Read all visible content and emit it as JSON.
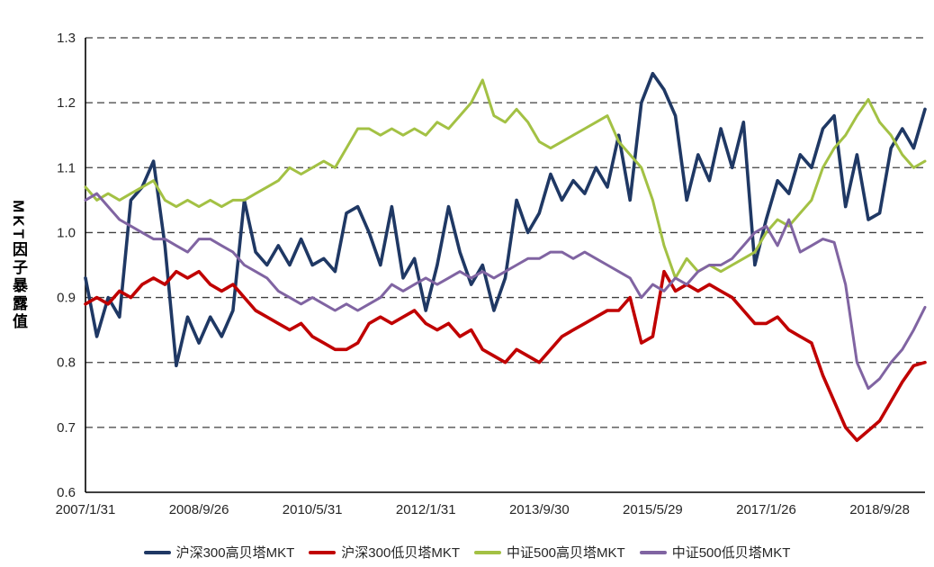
{
  "chart_data": {
    "type": "line",
    "title": "",
    "xlabel": "",
    "ylabel": "MKT因子暴露值",
    "ylim": [
      0.6,
      1.3
    ],
    "yticks": [
      0.6,
      0.7,
      0.8,
      0.9,
      1.0,
      1.1,
      1.2,
      1.3
    ],
    "grid": "dashed-horizontal",
    "legend_position": "bottom",
    "background": "#FFFFFF",
    "axis_color": "#000000",
    "gridline_color": "#3f3f3f",
    "x_domain_months": [
      0,
      148
    ],
    "x_months_step": 2,
    "xticks": [
      {
        "month": 0,
        "label": "2007/1/31"
      },
      {
        "month": 20,
        "label": "2008/9/26"
      },
      {
        "month": 40,
        "label": "2010/5/31"
      },
      {
        "month": 60,
        "label": "2012/1/31"
      },
      {
        "month": 80,
        "label": "2013/9/30"
      },
      {
        "month": 100,
        "label": "2015/5/29"
      },
      {
        "month": 120,
        "label": "2017/1/26"
      },
      {
        "month": 140,
        "label": "2018/9/28"
      }
    ],
    "series": [
      {
        "name": "沪深300高贝塔MKT",
        "color": "#1F3864",
        "width": 3.6,
        "values": [
          0.93,
          0.84,
          0.9,
          0.87,
          1.05,
          1.07,
          1.11,
          0.98,
          0.795,
          0.87,
          0.83,
          0.87,
          0.84,
          0.88,
          1.05,
          0.97,
          0.95,
          0.98,
          0.95,
          0.99,
          0.95,
          0.96,
          0.94,
          1.03,
          1.04,
          1.0,
          0.95,
          1.04,
          0.93,
          0.96,
          0.88,
          0.95,
          1.04,
          0.97,
          0.92,
          0.95,
          0.88,
          0.93,
          1.05,
          1.0,
          1.03,
          1.09,
          1.05,
          1.08,
          1.06,
          1.1,
          1.07,
          1.15,
          1.05,
          1.2,
          1.245,
          1.22,
          1.18,
          1.05,
          1.12,
          1.08,
          1.16,
          1.1,
          1.17,
          0.95,
          1.02,
          1.08,
          1.06,
          1.12,
          1.1,
          1.16,
          1.18,
          1.04,
          1.12,
          1.02,
          1.03,
          1.13,
          1.16,
          1.13,
          1.19
        ]
      },
      {
        "name": "沪深300低贝塔MKT",
        "color": "#C00000",
        "width": 3.6,
        "values": [
          0.89,
          0.9,
          0.89,
          0.91,
          0.9,
          0.92,
          0.93,
          0.92,
          0.94,
          0.93,
          0.94,
          0.92,
          0.91,
          0.92,
          0.9,
          0.88,
          0.87,
          0.86,
          0.85,
          0.86,
          0.84,
          0.83,
          0.82,
          0.82,
          0.83,
          0.86,
          0.87,
          0.86,
          0.87,
          0.88,
          0.86,
          0.85,
          0.86,
          0.84,
          0.85,
          0.82,
          0.81,
          0.8,
          0.82,
          0.81,
          0.8,
          0.82,
          0.84,
          0.85,
          0.86,
          0.87,
          0.88,
          0.88,
          0.9,
          0.83,
          0.84,
          0.94,
          0.91,
          0.92,
          0.91,
          0.92,
          0.91,
          0.9,
          0.88,
          0.86,
          0.86,
          0.87,
          0.85,
          0.84,
          0.83,
          0.78,
          0.74,
          0.7,
          0.68,
          0.695,
          0.71,
          0.74,
          0.77,
          0.795,
          0.8
        ]
      },
      {
        "name": "中证500高贝塔MKT",
        "color": "#A3C144",
        "width": 3.0,
        "values": [
          1.07,
          1.05,
          1.06,
          1.05,
          1.06,
          1.07,
          1.08,
          1.05,
          1.04,
          1.05,
          1.04,
          1.05,
          1.04,
          1.05,
          1.05,
          1.06,
          1.07,
          1.08,
          1.1,
          1.09,
          1.1,
          1.11,
          1.1,
          1.13,
          1.16,
          1.16,
          1.15,
          1.16,
          1.15,
          1.16,
          1.15,
          1.17,
          1.16,
          1.18,
          1.2,
          1.235,
          1.18,
          1.17,
          1.19,
          1.17,
          1.14,
          1.13,
          1.14,
          1.15,
          1.16,
          1.17,
          1.18,
          1.14,
          1.12,
          1.1,
          1.05,
          0.98,
          0.93,
          0.96,
          0.94,
          0.95,
          0.94,
          0.95,
          0.96,
          0.97,
          1.0,
          1.02,
          1.01,
          1.03,
          1.05,
          1.1,
          1.13,
          1.15,
          1.18,
          1.205,
          1.17,
          1.15,
          1.12,
          1.1,
          1.11
        ]
      },
      {
        "name": "中证500低贝塔MKT",
        "color": "#8064A2",
        "width": 3.0,
        "values": [
          1.05,
          1.06,
          1.04,
          1.02,
          1.01,
          1.0,
          0.99,
          0.99,
          0.98,
          0.97,
          0.99,
          0.99,
          0.98,
          0.97,
          0.95,
          0.94,
          0.93,
          0.91,
          0.9,
          0.89,
          0.9,
          0.89,
          0.88,
          0.89,
          0.88,
          0.89,
          0.9,
          0.92,
          0.91,
          0.92,
          0.93,
          0.92,
          0.93,
          0.94,
          0.93,
          0.94,
          0.93,
          0.94,
          0.95,
          0.96,
          0.96,
          0.97,
          0.97,
          0.96,
          0.97,
          0.96,
          0.95,
          0.94,
          0.93,
          0.9,
          0.92,
          0.91,
          0.93,
          0.92,
          0.94,
          0.95,
          0.95,
          0.96,
          0.98,
          1.0,
          1.01,
          0.98,
          1.02,
          0.97,
          0.98,
          0.99,
          0.985,
          0.92,
          0.8,
          0.76,
          0.775,
          0.8,
          0.82,
          0.85,
          0.885
        ]
      }
    ]
  }
}
